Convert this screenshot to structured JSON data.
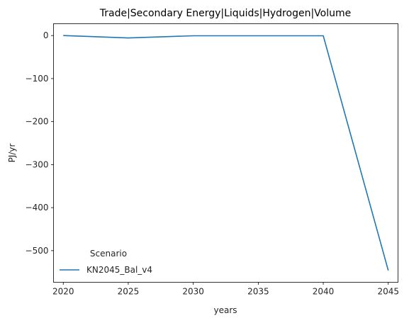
{
  "chart_data": {
    "type": "line",
    "title": "Trade|Secondary Energy|Liquids|Hydrogen|Volume",
    "xlabel": "years",
    "ylabel": "PJ/yr",
    "x": [
      2020,
      2025,
      2030,
      2035,
      2040,
      2045
    ],
    "xticks": [
      2020,
      2025,
      2030,
      2035,
      2040,
      2045
    ],
    "yticks": [
      0,
      -100,
      -200,
      -300,
      -400,
      -500
    ],
    "xlim": [
      2019.25,
      2045.75
    ],
    "ylim": [
      -573.5,
      27.5
    ],
    "grid": false,
    "legend": {
      "title": "Scenario",
      "placement": "lower-left"
    },
    "series": [
      {
        "name": "KN2045_Bal_v4",
        "color": "#1f77b4",
        "values": [
          0,
          -5.5,
          -0.5,
          -0.5,
          -0.5,
          -546
        ]
      }
    ]
  }
}
